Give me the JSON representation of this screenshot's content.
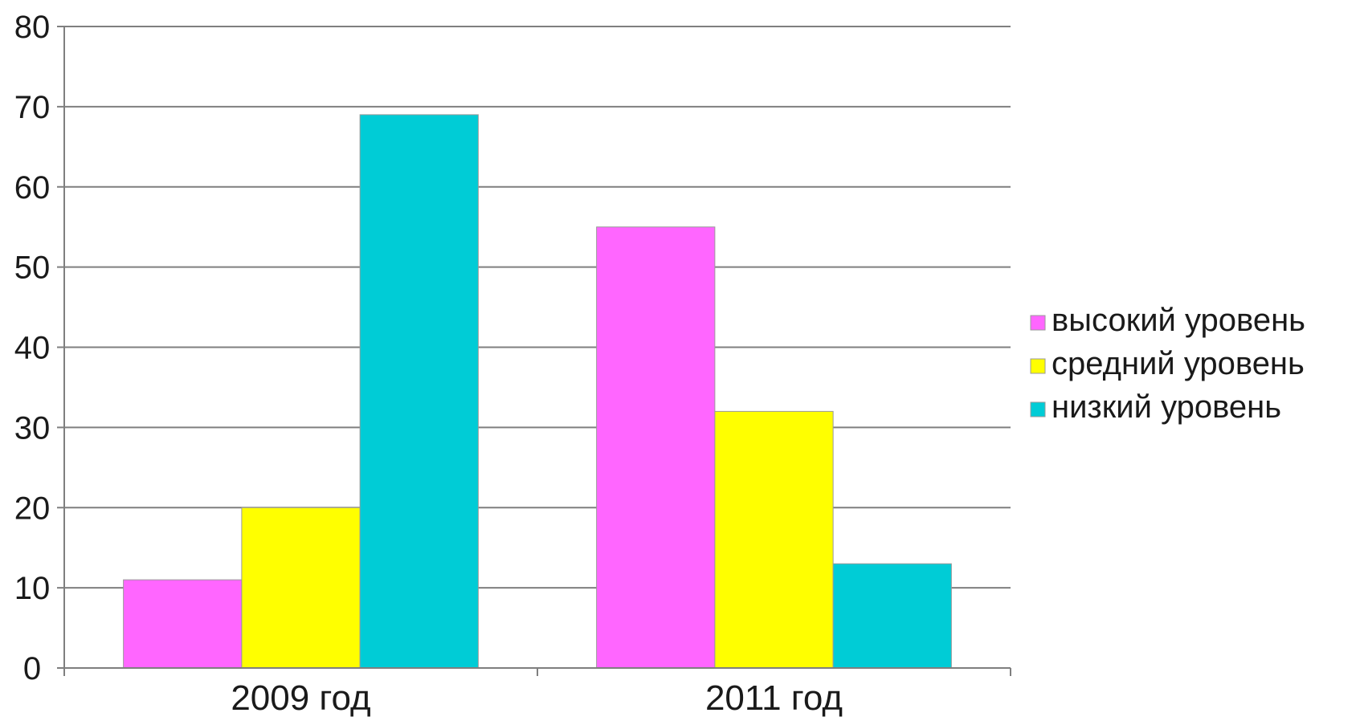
{
  "chart_data": {
    "type": "bar",
    "title": "",
    "xlabel": "",
    "ylabel": "",
    "categories": [
      "2009 год",
      "2011 год"
    ],
    "series": [
      {
        "name": "высокий уровень",
        "values": [
          11,
          55
        ],
        "color": "#ff66ff"
      },
      {
        "name": "средний уровень",
        "values": [
          20,
          32
        ],
        "color": "#ffff00"
      },
      {
        "name": "низкий уровень",
        "values": [
          69,
          13
        ],
        "color": "#00ccd6"
      }
    ],
    "ylim": [
      0,
      80
    ],
    "yticks": [
      "0",
      "10",
      "20",
      "30",
      "40",
      "50",
      "60",
      "70",
      "80"
    ],
    "grid": true,
    "legend_position": "right"
  }
}
